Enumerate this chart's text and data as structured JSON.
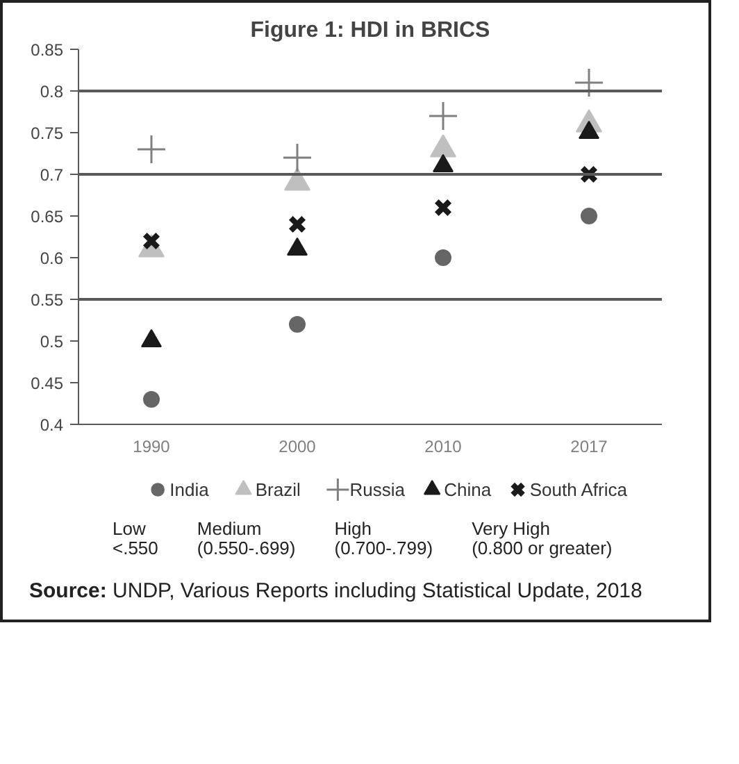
{
  "chart_data": {
    "type": "scatter",
    "title": "Figure 1: HDI in BRICS",
    "categories": [
      "1990",
      "2000",
      "2010",
      "2017"
    ],
    "series": [
      {
        "name": "India",
        "color": "#666666",
        "marker": "circle",
        "values": [
          0.43,
          0.52,
          0.6,
          0.65
        ]
      },
      {
        "name": "Brazil",
        "color": "#bfbfbf",
        "marker": "triangle",
        "values": [
          0.61,
          0.69,
          0.73,
          0.76
        ]
      },
      {
        "name": "Russia",
        "color": "#808080",
        "marker": "cross",
        "values": [
          0.73,
          0.72,
          0.77,
          0.81
        ]
      },
      {
        "name": "China",
        "color": "#1a1a1a",
        "marker": "triangle",
        "values": [
          0.5,
          0.61,
          0.71,
          0.75
        ]
      },
      {
        "name": "South Africa",
        "color": "#1a1a1a",
        "marker": "x",
        "values": [
          0.62,
          0.64,
          0.66,
          0.7
        ]
      }
    ],
    "ylim": [
      0.4,
      0.85
    ],
    "yticks": [
      0.4,
      0.45,
      0.5,
      0.55,
      0.6,
      0.65,
      0.7,
      0.75,
      0.8,
      0.85
    ],
    "ref_lines": [
      {
        "axis": "y",
        "value": 0.55,
        "color": "#595959"
      },
      {
        "axis": "y",
        "value": 0.7,
        "color": "#595959"
      },
      {
        "axis": "y",
        "value": 0.8,
        "color": "#595959"
      }
    ],
    "grid": false,
    "legend": "bottom",
    "annotations": [
      "Low\n<.550",
      "Medium\n(0.550-.699)",
      "High\n(0.700-.799)",
      "Very High\n(0.800 or greater)",
      "Source: UNDP, Various Reports including Statistical Update, 2018"
    ]
  }
}
